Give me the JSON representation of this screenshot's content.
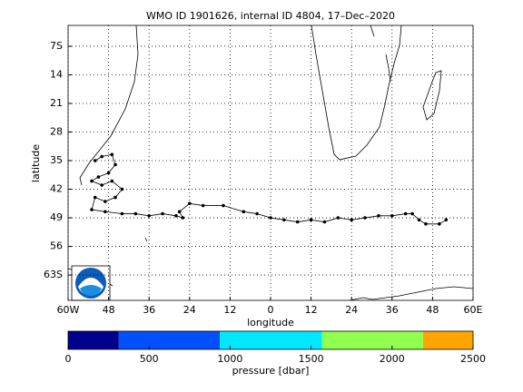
{
  "chart_data": {
    "type": "scatter",
    "title": "WMO ID 1901626, internal ID 4804, 17–Dec–2020",
    "x_label": "longitude",
    "y_label": "latitude",
    "xlim": [
      -60,
      60
    ],
    "xticks": [
      {
        "value": -60,
        "label": "60W"
      },
      {
        "value": -48,
        "label": "48"
      },
      {
        "value": -36,
        "label": "36"
      },
      {
        "value": -24,
        "label": "24"
      },
      {
        "value": -12,
        "label": "12"
      },
      0,
      12,
      24,
      36,
      48,
      {
        "value": 60,
        "label": "60E"
      }
    ],
    "ylim": [
      -69.2,
      -1.9
    ],
    "yticks": [
      {
        "value": -7,
        "label": "7S"
      },
      {
        "value": -14,
        "label": "14"
      },
      {
        "value": -21,
        "label": "21"
      },
      {
        "value": -28,
        "label": "28"
      },
      {
        "value": -35,
        "label": "35"
      },
      {
        "value": -42,
        "label": "42"
      },
      {
        "value": -49,
        "label": "49"
      },
      {
        "value": -56,
        "label": "56"
      },
      {
        "value": -63,
        "label": "63S"
      }
    ],
    "grid": true,
    "color": "#000000",
    "x": [
      -52,
      -50,
      -47,
      -46,
      -48,
      -51,
      -53,
      -50,
      -47,
      -44,
      -46,
      -49,
      -52,
      -53,
      -49,
      -44,
      -40,
      -36,
      -32,
      -28,
      -26,
      -27,
      -24,
      -20,
      -14,
      -8,
      -4,
      0,
      4,
      8,
      12,
      16,
      20,
      24,
      28,
      32,
      36,
      40,
      42,
      44,
      46,
      50,
      52
    ],
    "y": [
      -35,
      -34,
      -33.5,
      -36,
      -38,
      -39,
      -40,
      -41,
      -40,
      -42,
      -44,
      -45,
      -44,
      -47,
      -47.5,
      -48,
      -48,
      -48.5,
      -48,
      -48.5,
      -49,
      -47.5,
      -45.5,
      -46,
      -46,
      -47.5,
      -48,
      -49,
      -49.5,
      -50,
      -49.5,
      -50,
      -49,
      -49.5,
      -49,
      -48.5,
      -48.5,
      -48,
      -48,
      -49.5,
      -50.5,
      -50.5,
      -49.5
    ],
    "colorbar": {
      "label": "pressure [dbar]",
      "lim": [
        0,
        2500
      ],
      "ticks": [
        0,
        500,
        1000,
        1500,
        2000,
        2500
      ],
      "bounds": [
        0,
        313,
        937,
        1567,
        2191,
        2500
      ],
      "colors": [
        "#00008f",
        "#0050ff",
        "#00e8ff",
        "#90ff50",
        "#ffa500"
      ]
    }
  }
}
